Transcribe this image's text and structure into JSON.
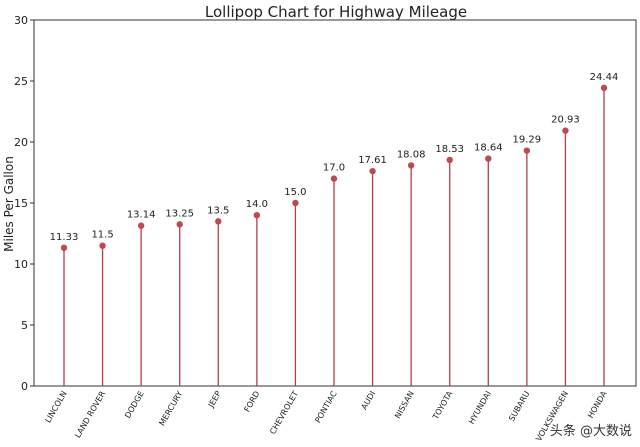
{
  "chart_data": {
    "type": "lollipop",
    "title": "Lollipop Chart for Highway Mileage",
    "ylabel": "Miles Per Gallon",
    "xlabel": "",
    "ylim": [
      0,
      30
    ],
    "yticks": [
      0,
      5,
      10,
      15,
      20,
      25,
      30
    ],
    "categories": [
      "LINCOLN",
      "LAND ROVER",
      "DODGE",
      "MERCURY",
      "JEEP",
      "FORD",
      "CHEVROLET",
      "PONTIAC",
      "AUDI",
      "NISSAN",
      "TOYOTA",
      "HYUNDAI",
      "SUBARU",
      "VOLKSWAGEN",
      "HONDA"
    ],
    "values": [
      11.33,
      11.5,
      13.14,
      13.25,
      13.5,
      14.0,
      15.0,
      17.0,
      17.61,
      18.08,
      18.53,
      18.64,
      19.29,
      20.93,
      24.44
    ],
    "value_labels": [
      "11.33",
      "11.5",
      "13.14",
      "13.25",
      "13.5",
      "14.0",
      "15.0",
      "17.0",
      "17.61",
      "18.08",
      "18.53",
      "18.64",
      "19.29",
      "20.93",
      "24.44"
    ],
    "colors": {
      "stem": "#b04048",
      "marker": "#c04850"
    },
    "grid": false
  },
  "watermark": "头条 @大数说"
}
